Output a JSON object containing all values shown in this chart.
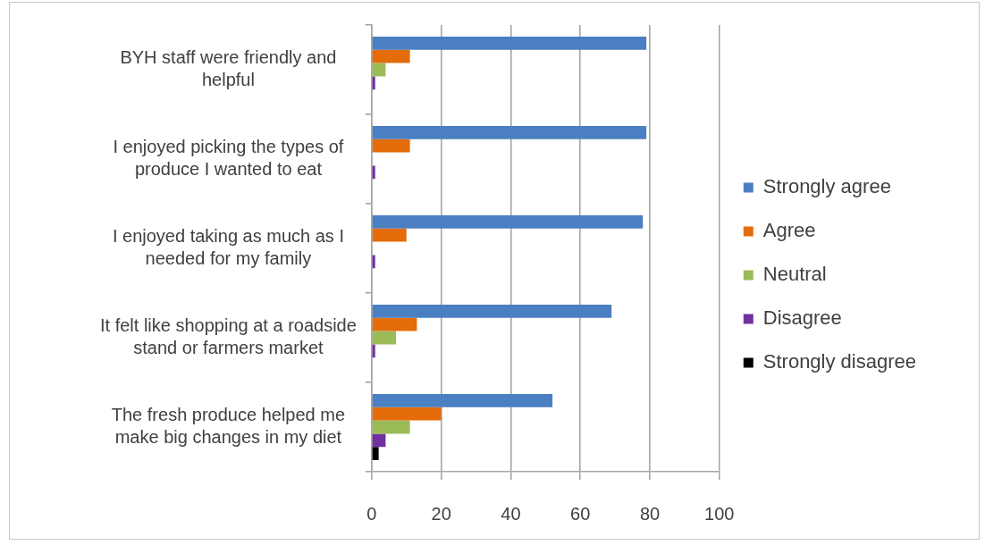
{
  "chart_data": {
    "type": "bar",
    "orientation": "horizontal",
    "categories": [
      "BYH staff were friendly and helpful",
      "I enjoyed picking the types of produce I wanted to eat",
      "I enjoyed taking as much as I needed for my family",
      "It felt like shopping at a roadside stand or farmers market",
      "The fresh produce helped me make big changes in my diet"
    ],
    "series": [
      {
        "name": "Strongly agree",
        "color": "#4a7fc1",
        "values": [
          79,
          79,
          78,
          69,
          52
        ]
      },
      {
        "name": "Agree",
        "color": "#e46c0a",
        "values": [
          11,
          11,
          10,
          13,
          20
        ]
      },
      {
        "name": "Neutral",
        "color": "#9bbb59",
        "values": [
          4,
          0,
          0,
          7,
          11
        ]
      },
      {
        "name": "Disagree",
        "color": "#7030a0",
        "values": [
          1,
          1,
          1,
          1,
          4
        ]
      },
      {
        "name": "Strongly disagree",
        "color": "#000000",
        "values": [
          0,
          0,
          0,
          0,
          2
        ]
      }
    ],
    "xlim": [
      0,
      100
    ],
    "xticks": [
      0,
      20,
      40,
      60,
      80,
      100
    ],
    "grid": "x",
    "legend": "right"
  }
}
